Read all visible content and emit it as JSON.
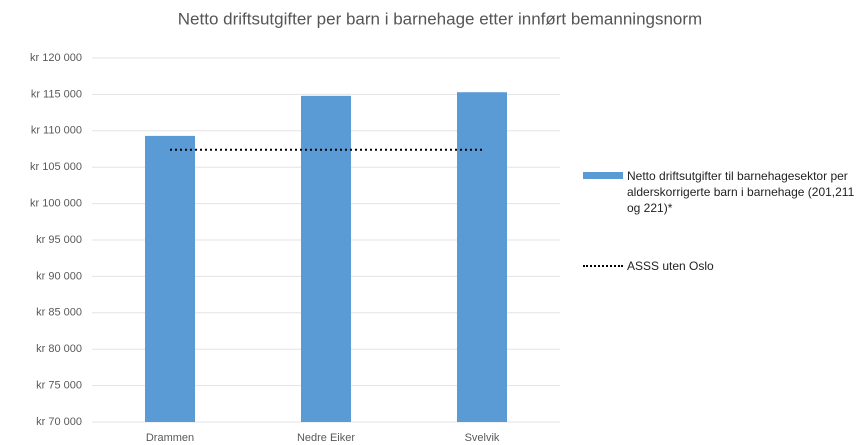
{
  "chart_data": {
    "type": "bar",
    "title": "Netto driftsutgifter per barn i barnehage etter innført bemanningsnorm",
    "categories": [
      "Drammen",
      "Nedre Eiker",
      "Svelvik"
    ],
    "series": [
      {
        "name": "Netto driftsutgifter til barnehagesektor per alderskorrigerte barn i barnehage (201,211 og 221)*",
        "type": "bar",
        "color": "#5b9bd5",
        "values": [
          109300,
          114800,
          115300
        ]
      },
      {
        "name": "ASSS uten Oslo",
        "type": "line",
        "color": "#000000",
        "values": [
          107400,
          107400,
          107400
        ]
      }
    ],
    "ylim": [
      70000,
      120000
    ],
    "yticks": [
      {
        "value": 70000,
        "label": "kr 70 000"
      },
      {
        "value": 75000,
        "label": "kr 75 000"
      },
      {
        "value": 80000,
        "label": "kr 80 000"
      },
      {
        "value": 85000,
        "label": "kr 85 000"
      },
      {
        "value": 90000,
        "label": "kr 90 000"
      },
      {
        "value": 95000,
        "label": "kr 95 000"
      },
      {
        "value": 100000,
        "label": "kr 100 000"
      },
      {
        "value": 105000,
        "label": "kr 105 000"
      },
      {
        "value": 110000,
        "label": "kr 110 000"
      },
      {
        "value": 115000,
        "label": "kr 115 000"
      },
      {
        "value": 120000,
        "label": "kr 120 000"
      }
    ],
    "grid": true,
    "legend": "right"
  }
}
